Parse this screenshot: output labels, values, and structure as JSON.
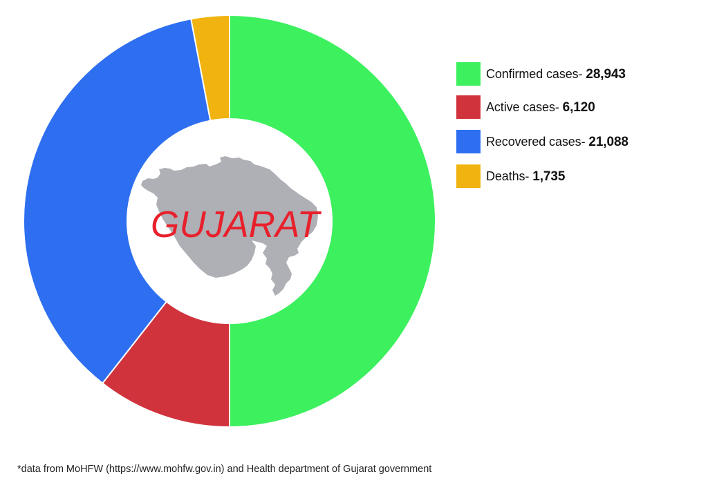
{
  "chart_data": {
    "type": "pie",
    "subtype": "donut",
    "title": "",
    "center_label": "GUJARAT",
    "categories": [
      "Confirmed cases",
      "Active cases",
      "Recovered cases",
      "Deaths"
    ],
    "values": [
      28943,
      6120,
      21088,
      1735
    ],
    "value_labels": [
      "28,943",
      "6,120",
      "21,088",
      "1,735"
    ],
    "colors": [
      "#3cf05e",
      "#d1333d",
      "#2d6ff0",
      "#f0b30f"
    ],
    "start_angle_deg": 0,
    "direction": "clockwise",
    "legend_position": "right",
    "grid": false,
    "footnote": "*data from MoHFW (https://www.mohfw.gov.in) and Health department of Gujarat government"
  },
  "center": {
    "label": "GUJARAT",
    "label_color": "#e8202b",
    "map_color": "#aeb0b6",
    "map_icon": "gujarat-map-silhouette"
  },
  "legend": {
    "items": [
      {
        "label": "Confirmed cases- ",
        "value": "28,943",
        "color": "#3cf05e"
      },
      {
        "label": "Active cases- ",
        "value": "6,120",
        "color": "#d1333d"
      },
      {
        "label": "Recovered cases- ",
        "value": "21,088",
        "color": "#2d6ff0"
      },
      {
        "label": "Deaths- ",
        "value": "1,735",
        "color": "#f0b30f"
      }
    ]
  },
  "footnote": "*data from MoHFW (https://www.mohfw.gov.in) and Health department of Gujarat government"
}
